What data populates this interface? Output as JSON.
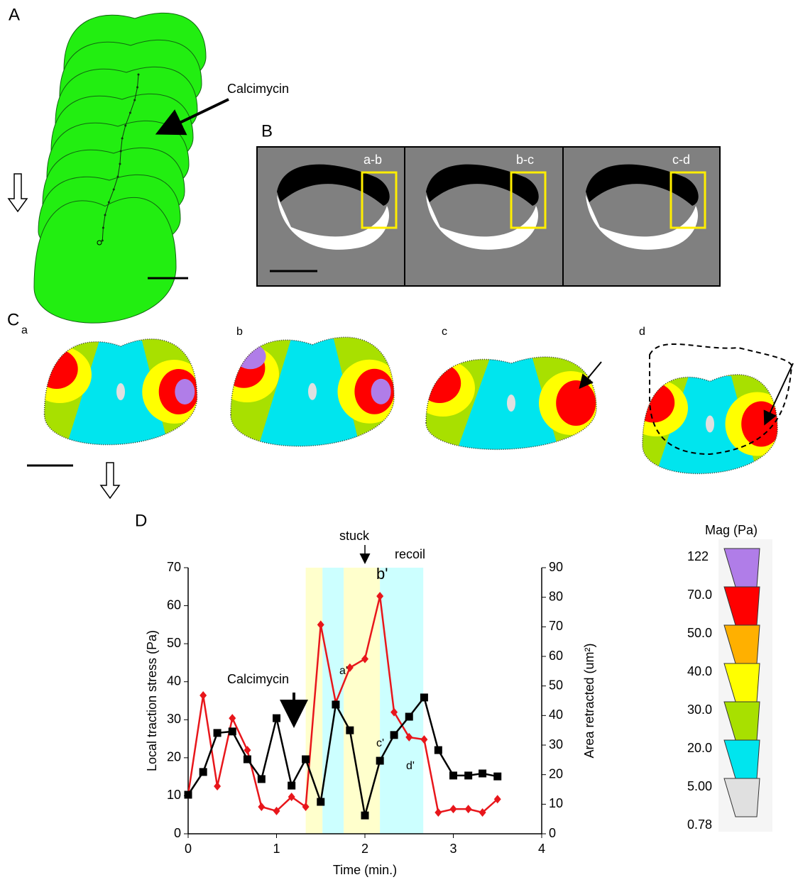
{
  "panels": {
    "A": {
      "label": "A",
      "annotation": "Calcimycin"
    },
    "B": {
      "label": "B",
      "frames": [
        "a-b",
        "b-c",
        "c-d"
      ]
    },
    "C": {
      "label": "C",
      "sublabel": "a",
      "frames": [
        "b",
        "c",
        "d"
      ]
    },
    "D": {
      "label": "D"
    },
    "colorbar": {
      "title": "Mag (Pa)",
      "labels": [
        "122",
        "70.0",
        "50.0",
        "40.0",
        "30.0",
        "20.0",
        "5.00",
        "0.78"
      ],
      "colors": [
        "#b07de8",
        "#ff0000",
        "#ffb000",
        "#ffff00",
        "#a8e000",
        "#00e5ee",
        "#e0e0e0"
      ]
    }
  },
  "chart_data": {
    "type": "line",
    "xlabel": "Time (min.)",
    "ylabel": "Local traction stress (Pa)",
    "y2label": "Area retracted (um²)",
    "annotations": [
      "Calcimycin",
      "stuck",
      "recoil",
      "a'",
      "b'",
      "c'",
      "d'"
    ],
    "xlim": [
      0,
      4
    ],
    "xticks": [
      0,
      1,
      2,
      3,
      4
    ],
    "ylim": [
      0,
      70
    ],
    "yticks": [
      0,
      10,
      20,
      30,
      40,
      50,
      60,
      70
    ],
    "y2lim": [
      0,
      90
    ],
    "y2ticks": [
      0,
      10,
      20,
      30,
      40,
      50,
      60,
      70,
      80,
      90
    ],
    "bands": [
      {
        "xlim": [
          1.33,
          1.52
        ],
        "color": "#ffffcc"
      },
      {
        "xlim": [
          1.52,
          1.76
        ],
        "color": "#ccffff"
      },
      {
        "xlim": [
          1.76,
          2.17
        ],
        "color": "#ffffcc"
      },
      {
        "xlim": [
          2.17,
          2.66
        ],
        "color": "#ccffff"
      }
    ],
    "x": [
      0,
      0.17,
      0.33,
      0.5,
      0.67,
      0.83,
      1,
      1.17,
      1.33,
      1.5,
      1.67,
      1.83,
      2,
      2.17,
      2.33,
      2.5,
      2.67,
      2.83,
      3,
      3.17,
      3.33,
      3.5
    ],
    "series": [
      {
        "color": "#e8161b",
        "marker": "diamond",
        "values": [
          10.3,
          36.4,
          12.5,
          30.4,
          22,
          7.1,
          6,
          9.7,
          7.1,
          55,
          34.5,
          43.7,
          46,
          62.5,
          32,
          25.4,
          24.8,
          5.6,
          6.5,
          6.5,
          5.6,
          9.1
        ]
      },
      {
        "color": "#000000",
        "marker": "square",
        "axis": "y2",
        "values": [
          13.2,
          20.9,
          34.1,
          34.6,
          25.2,
          18.5,
          39.1,
          16.3,
          25.2,
          10.8,
          43.7,
          35,
          6.2,
          24.7,
          33.4,
          39.6,
          46.1,
          28.3,
          19.7,
          19.7,
          20.4,
          19.4
        ]
      }
    ]
  }
}
